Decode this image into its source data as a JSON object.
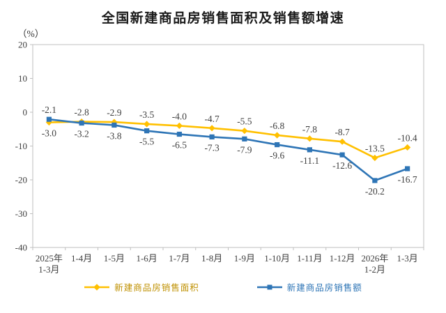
{
  "title": "全国新建商品房销售面积及销售额增速",
  "y_axis_unit": "（%）",
  "colors": {
    "axis": "#BFBFBF",
    "tick_label": "#3F3F3F",
    "data_label": "#3F3F3F",
    "title": "#1A1A1A",
    "area_series": "#FFC000",
    "amount_series": "#2E75B6",
    "area_legend_text": "#BF9000",
    "amount_legend_text": "#2E75B6"
  },
  "chart_data": {
    "type": "line",
    "title": "全国新建商品房销售面积及销售额增速",
    "ylabel": "（%）",
    "ylim": [
      -40,
      20
    ],
    "yticks": [
      20,
      10,
      0,
      -10,
      -20,
      -30,
      -40
    ],
    "grid": false,
    "legend_position": "bottom",
    "categories": [
      [
        "2025年",
        "1-3月"
      ],
      [
        "1-4月"
      ],
      [
        "1-5月"
      ],
      [
        "1-6月"
      ],
      [
        "1-7月"
      ],
      [
        "1-8月"
      ],
      [
        "1-9月"
      ],
      [
        "1-10月"
      ],
      [
        "1-11月"
      ],
      [
        "1-12月"
      ],
      [
        "2026年",
        "1-2月"
      ],
      [
        "1-3月"
      ]
    ],
    "series": [
      {
        "name": "新建商品房销售面积",
        "color": "#FFC000",
        "label_color": "#BF9000",
        "marker": "diamond",
        "values": [
          -3.0,
          -2.8,
          -2.9,
          -3.5,
          -4.0,
          -4.7,
          -5.5,
          -6.8,
          -7.8,
          -8.7,
          -13.5,
          -10.4
        ],
        "label_side": [
          "below",
          "above",
          "above",
          "above",
          "above",
          "above",
          "above",
          "above",
          "above",
          "above",
          "above",
          "above"
        ]
      },
      {
        "name": "新建商品房销售额",
        "color": "#2E75B6",
        "label_color": "#2E75B6",
        "marker": "square",
        "values": [
          -2.1,
          -3.2,
          -3.8,
          -5.5,
          -6.5,
          -7.3,
          -7.9,
          -9.6,
          -11.1,
          -12.6,
          -20.2,
          -16.7
        ],
        "label_side": [
          "above",
          "below",
          "below",
          "below",
          "below",
          "below",
          "below",
          "below",
          "below",
          "below",
          "below",
          "below"
        ]
      }
    ]
  }
}
